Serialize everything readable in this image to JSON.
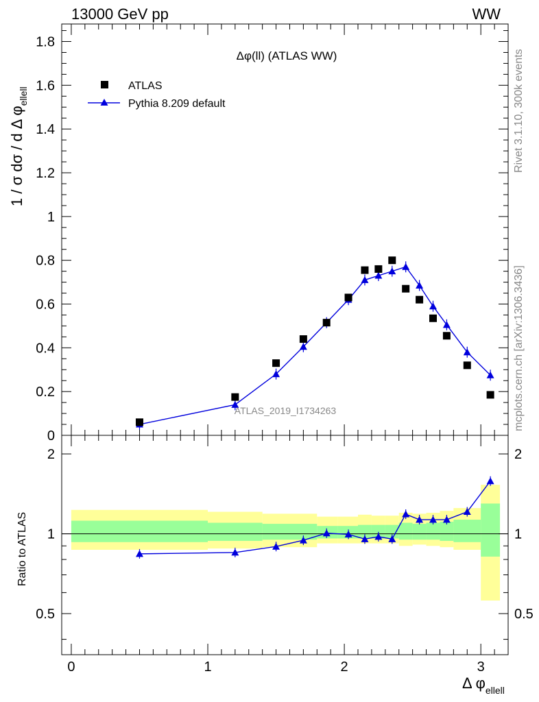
{
  "header": {
    "left": "13000 GeV pp",
    "right": "WW"
  },
  "side_labels": {
    "rivet": "Rivet 3.1.10,  300k events",
    "mcplots": "mcplots.cern.ch [arXiv:1306.3436]"
  },
  "chart_data": [
    {
      "type": "scatter",
      "title": "Δφ(ll) (ATLAS WW)",
      "watermark": "ATLAS_2019_I1734263",
      "ylabel": "1 / σ  dσ / d Δ φ",
      "ylabel_sub": "ellell",
      "xlim": [
        -0.07,
        3.2
      ],
      "ylim": [
        0,
        1.88
      ],
      "yticks": [
        0.2,
        0.4,
        0.6,
        0.8,
        1,
        1.2,
        1.4,
        1.6,
        1.8
      ],
      "ytick_labels": [
        "0.2",
        "0.4",
        "0.6",
        "0.8",
        "1",
        "1.2",
        "1.4",
        "1.6",
        "1.8"
      ],
      "y_zero_label": "0",
      "legend": {
        "placement": "top-left",
        "entries": [
          "ATLAS",
          "Pythia 8.209 default"
        ]
      },
      "series": [
        {
          "name": "ATLAS",
          "marker": "square",
          "color": "#000000",
          "x": [
            0.5,
            1.2,
            1.5,
            1.7,
            1.87,
            2.03,
            2.15,
            2.25,
            2.35,
            2.45,
            2.55,
            2.65,
            2.75,
            2.9,
            3.07
          ],
          "y": [
            0.06,
            0.175,
            0.33,
            0.44,
            0.515,
            0.63,
            0.755,
            0.76,
            0.8,
            0.67,
            0.62,
            0.535,
            0.455,
            0.32,
            0.185
          ]
        },
        {
          "name": "Pythia 8.209 default",
          "marker": "triangle",
          "color": "#0000dd",
          "x": [
            0.5,
            1.2,
            1.5,
            1.7,
            1.87,
            2.03,
            2.15,
            2.25,
            2.35,
            2.45,
            2.55,
            2.65,
            2.75,
            2.9,
            3.07
          ],
          "y": [
            0.05,
            0.14,
            0.28,
            0.405,
            0.515,
            0.62,
            0.71,
            0.73,
            0.75,
            0.77,
            0.685,
            0.59,
            0.505,
            0.38,
            0.275
          ]
        }
      ]
    },
    {
      "type": "scatter",
      "ylabel": "Ratio to ATLAS",
      "xlabel": "Δ φ",
      "xlabel_sub": "ellell",
      "xlim": [
        -0.07,
        3.2
      ],
      "ylim": [
        0.35,
        2.35
      ],
      "xticks": [
        0,
        1,
        2,
        3
      ],
      "xtick_labels": [
        "0",
        "1",
        "2",
        "3"
      ],
      "yticks": [
        0.5,
        1,
        2
      ],
      "ytick_labels": [
        "0.5",
        "1",
        "2"
      ],
      "reference_line": 1,
      "bands": [
        {
          "x0": 0.0,
          "x1": 1.0,
          "yellow": [
            0.87,
            1.23
          ],
          "green": [
            0.93,
            1.12
          ]
        },
        {
          "x0": 1.0,
          "x1": 1.4,
          "yellow": [
            0.88,
            1.21
          ],
          "green": [
            0.94,
            1.1
          ]
        },
        {
          "x0": 1.4,
          "x1": 1.8,
          "yellow": [
            0.89,
            1.19
          ],
          "green": [
            0.95,
            1.09
          ]
        },
        {
          "x0": 1.8,
          "x1": 1.95,
          "yellow": [
            0.92,
            1.16
          ],
          "green": [
            0.96,
            1.07
          ]
        },
        {
          "x0": 1.95,
          "x1": 2.1,
          "yellow": [
            0.92,
            1.16
          ],
          "green": [
            0.96,
            1.07
          ]
        },
        {
          "x0": 2.1,
          "x1": 2.2,
          "yellow": [
            0.92,
            1.18
          ],
          "green": [
            0.96,
            1.08
          ]
        },
        {
          "x0": 2.2,
          "x1": 2.3,
          "yellow": [
            0.92,
            1.17
          ],
          "green": [
            0.96,
            1.08
          ]
        },
        {
          "x0": 2.3,
          "x1": 2.4,
          "yellow": [
            0.92,
            1.17
          ],
          "green": [
            0.96,
            1.08
          ]
        },
        {
          "x0": 2.4,
          "x1": 2.5,
          "yellow": [
            0.9,
            1.2
          ],
          "green": [
            0.95,
            1.1
          ]
        },
        {
          "x0": 2.5,
          "x1": 2.6,
          "yellow": [
            0.91,
            1.19
          ],
          "green": [
            0.95,
            1.09
          ]
        },
        {
          "x0": 2.6,
          "x1": 2.7,
          "yellow": [
            0.9,
            1.2
          ],
          "green": [
            0.95,
            1.1
          ]
        },
        {
          "x0": 2.7,
          "x1": 2.8,
          "yellow": [
            0.89,
            1.22
          ],
          "green": [
            0.94,
            1.11
          ]
        },
        {
          "x0": 2.8,
          "x1": 3.0,
          "yellow": [
            0.87,
            1.25
          ],
          "green": [
            0.93,
            1.13
          ]
        },
        {
          "x0": 3.0,
          "x1": 3.14,
          "yellow": [
            0.56,
            1.53
          ],
          "green": [
            0.82,
            1.3
          ]
        }
      ],
      "series": [
        {
          "name": "Pythia 8.209 default",
          "marker": "triangle",
          "color": "#0000dd",
          "x": [
            0.5,
            1.2,
            1.5,
            1.7,
            1.87,
            2.03,
            2.15,
            2.25,
            2.35,
            2.45,
            2.55,
            2.65,
            2.75,
            2.9,
            3.07
          ],
          "y": [
            0.84,
            0.85,
            0.895,
            0.945,
            1.005,
            0.995,
            0.955,
            0.975,
            0.955,
            1.185,
            1.13,
            1.13,
            1.13,
            1.21,
            1.58
          ]
        }
      ],
      "colors": {
        "yellow": "#ffff99",
        "green": "#99ff99",
        "mc": "#0000dd"
      }
    }
  ]
}
